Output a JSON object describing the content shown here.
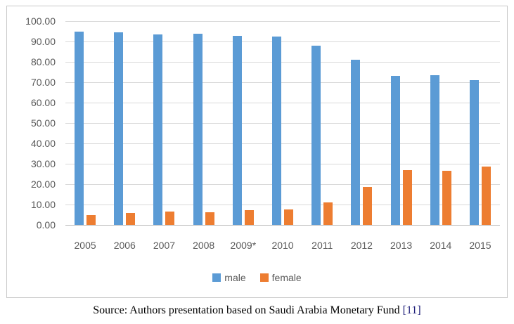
{
  "caption": {
    "prefix": "Source: Authors presentation based on Saudi Arabia Monetary Fund ",
    "citation": "[11]"
  },
  "colors": {
    "male": "#5B9BD5",
    "female": "#ED7D31",
    "gridline": "#D9D9D9",
    "axis_line": "#BFBFBF",
    "tick_text": "#595959",
    "frame_border": "#C9C9C9",
    "caption_text": "#000000",
    "citation_text": "#20207A"
  },
  "chart_data": {
    "type": "bar",
    "title": "",
    "xlabel": "",
    "ylabel": "",
    "categories": [
      "2005",
      "2006",
      "2007",
      "2008",
      "2009*",
      "2010",
      "2011",
      "2012",
      "2013",
      "2014",
      "2015"
    ],
    "series": [
      {
        "name": "male",
        "color": "#5B9BD5",
        "values": [
          95.0,
          94.5,
          93.6,
          93.9,
          92.9,
          92.4,
          88.0,
          81.2,
          73.0,
          73.4,
          71.2
        ]
      },
      {
        "name": "female",
        "color": "#ED7D31",
        "values": [
          5.0,
          5.7,
          6.5,
          6.2,
          7.1,
          7.6,
          11.2,
          18.5,
          26.9,
          26.6,
          28.6
        ]
      }
    ],
    "ylim": [
      0,
      100
    ],
    "y_ticks": [
      "100.00",
      "90.00",
      "80.00",
      "70.00",
      "60.00",
      "50.00",
      "40.00",
      "30.00",
      "20.00",
      "10.00",
      "0.00"
    ],
    "grid": true,
    "legend": [
      "male",
      "female"
    ],
    "legend_position": "bottom"
  }
}
